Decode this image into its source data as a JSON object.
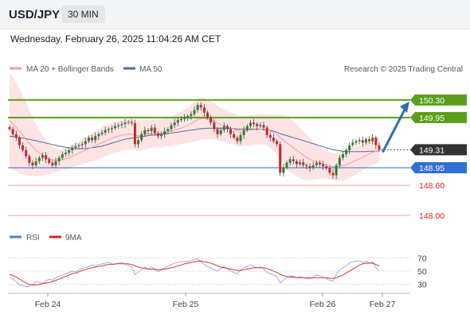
{
  "header": {
    "symbol": "USD/JPY",
    "timeframe": "30 MIN",
    "datetime": "Wednesday, February 26, 2025 11:04:26 AM CET"
  },
  "copyright": "Research © 2025 Trading Central",
  "colors": {
    "green": "#5a9e1a",
    "blue": "#2f6fd6",
    "red": "#e02020",
    "red_light": "#f4a0a0",
    "band_fill": "#fde3e3",
    "ma50": "#4a6fa5",
    "arrow": "#2f6db5",
    "candle_up": "#2e7d32",
    "candle_down": "#c62828"
  },
  "chart_data": [
    {
      "type": "candlestick",
      "title": "",
      "legend": [
        {
          "name": "MA 20 + Bollinger Bands",
          "color": "#f4a0a0"
        },
        {
          "name": "MA 50",
          "color": "#4a6fa5"
        }
      ],
      "x_ticks": [
        "Feb 24",
        "Feb 25",
        "Feb 26",
        "Feb 27"
      ],
      "levels": [
        {
          "value": 150.3,
          "label": "150.30",
          "color": "#5a9e1a",
          "style": "box"
        },
        {
          "value": 149.95,
          "label": "149.95",
          "color": "#5a9e1a",
          "style": "box"
        },
        {
          "value": 149.31,
          "label": "149.31",
          "color": "#333333",
          "style": "current"
        },
        {
          "value": 148.95,
          "label": "148.95",
          "color": "#2f6fd6",
          "style": "box"
        },
        {
          "value": 148.6,
          "label": "148.60",
          "color": "#e02020",
          "style": "text"
        },
        {
          "value": 148.0,
          "label": "148.00",
          "color": "#e02020",
          "style": "text"
        }
      ],
      "ylim": [
        147.7,
        150.55
      ],
      "closes": [
        149.72,
        149.62,
        149.55,
        149.4,
        149.3,
        149.18,
        149.05,
        149.0,
        149.08,
        149.15,
        149.2,
        149.12,
        149.05,
        149.0,
        149.08,
        149.15,
        149.22,
        149.25,
        149.3,
        149.35,
        149.38,
        149.4,
        149.42,
        149.48,
        149.55,
        149.5,
        149.58,
        149.62,
        149.65,
        149.7,
        149.72,
        149.74,
        149.78,
        149.8,
        149.82,
        149.85,
        149.86,
        149.84,
        149.42,
        149.5,
        149.62,
        149.7,
        149.68,
        149.75,
        149.64,
        149.58,
        149.62,
        149.68,
        149.72,
        149.8,
        149.85,
        149.9,
        149.92,
        149.95,
        149.98,
        150.02,
        150.1,
        150.2,
        150.15,
        150.05,
        149.95,
        149.85,
        149.72,
        149.62,
        149.7,
        149.78,
        149.72,
        149.62,
        149.55,
        149.48,
        149.6,
        149.7,
        149.78,
        149.85,
        149.82,
        149.78,
        149.8,
        149.75,
        149.6,
        149.55,
        149.48,
        149.42,
        148.85,
        148.95,
        149.05,
        149.12,
        149.08,
        149.02,
        149.06,
        149.0,
        148.98,
        148.95,
        149.0,
        149.05,
        149.02,
        148.98,
        148.94,
        148.85,
        148.8,
        149.0,
        149.15,
        149.22,
        149.3,
        149.4,
        149.45,
        149.48,
        149.5,
        149.45,
        149.52,
        149.48,
        149.55,
        149.4,
        149.31
      ],
      "ma20": [
        149.9,
        149.83,
        149.76,
        149.68,
        149.6,
        149.52,
        149.44,
        149.37,
        149.3,
        149.25,
        149.2,
        149.16,
        149.13,
        149.11,
        149.1,
        149.1,
        149.11,
        149.13,
        149.15,
        149.18,
        149.21,
        149.24,
        149.27,
        149.3,
        149.33,
        149.36,
        149.39,
        149.42,
        149.45,
        149.48,
        149.51,
        149.54,
        149.56,
        149.58,
        149.6,
        149.61,
        149.62,
        149.62,
        149.6,
        149.59,
        149.6,
        149.61,
        149.62,
        149.63,
        149.63,
        149.63,
        149.64,
        149.65,
        149.66,
        149.68,
        149.7,
        149.72,
        149.74,
        149.77,
        149.8,
        149.83,
        149.87,
        149.91,
        149.93,
        149.93,
        149.92,
        149.9,
        149.87,
        149.84,
        149.81,
        149.79,
        149.77,
        149.74,
        149.72,
        149.69,
        149.68,
        149.68,
        149.69,
        149.7,
        149.71,
        149.71,
        149.72,
        149.72,
        149.7,
        149.68,
        149.65,
        149.62,
        149.55,
        149.5,
        149.45,
        149.4,
        149.35,
        149.3,
        149.25,
        149.2,
        149.16,
        149.12,
        149.09,
        149.07,
        149.05,
        149.03,
        149.01,
        148.99,
        148.97,
        148.97,
        148.98,
        148.99,
        149.01,
        149.04,
        149.07,
        149.1,
        149.13,
        149.16,
        149.2,
        149.23,
        149.26,
        149.28,
        149.3
      ],
      "ma50": [
        149.58,
        149.57,
        149.56,
        149.55,
        149.54,
        149.53,
        149.52,
        149.5,
        149.49,
        149.47,
        149.46,
        149.44,
        149.43,
        149.41,
        149.4,
        149.38,
        149.37,
        149.36,
        149.35,
        149.34,
        149.33,
        149.33,
        149.33,
        149.33,
        149.34,
        149.35,
        149.36,
        149.37,
        149.38,
        149.4,
        149.42,
        149.44,
        149.46,
        149.48,
        149.5,
        149.52,
        149.53,
        149.54,
        149.55,
        149.56,
        149.57,
        149.58,
        149.59,
        149.6,
        149.6,
        149.61,
        149.62,
        149.62,
        149.63,
        149.64,
        149.65,
        149.66,
        149.67,
        149.68,
        149.69,
        149.7,
        149.71,
        149.72,
        149.73,
        149.73,
        149.74,
        149.74,
        149.74,
        149.74,
        149.74,
        149.74,
        149.74,
        149.73,
        149.73,
        149.72,
        149.72,
        149.72,
        149.72,
        149.72,
        149.72,
        149.72,
        149.72,
        149.71,
        149.7,
        149.69,
        149.68,
        149.66,
        149.63,
        149.61,
        149.59,
        149.57,
        149.55,
        149.53,
        149.51,
        149.49,
        149.47,
        149.45,
        149.43,
        149.41,
        149.39,
        149.37,
        149.35,
        149.33,
        149.31,
        149.3,
        149.29,
        149.28,
        149.27,
        149.27,
        149.27,
        149.27,
        149.27,
        149.27,
        149.27,
        149.28,
        149.28,
        149.28,
        149.29
      ],
      "band_width": [
        0.95,
        0.92,
        0.88,
        0.84,
        0.78,
        0.72,
        0.65,
        0.58,
        0.52,
        0.46,
        0.4,
        0.35,
        0.3,
        0.26,
        0.24,
        0.22,
        0.21,
        0.21,
        0.22,
        0.22,
        0.23,
        0.24,
        0.25,
        0.26,
        0.27,
        0.28,
        0.29,
        0.3,
        0.3,
        0.31,
        0.31,
        0.31,
        0.31,
        0.31,
        0.31,
        0.31,
        0.3,
        0.3,
        0.3,
        0.3,
        0.3,
        0.3,
        0.29,
        0.28,
        0.28,
        0.28,
        0.28,
        0.28,
        0.28,
        0.29,
        0.3,
        0.31,
        0.32,
        0.33,
        0.35,
        0.37,
        0.4,
        0.42,
        0.42,
        0.41,
        0.4,
        0.38,
        0.36,
        0.34,
        0.33,
        0.32,
        0.32,
        0.31,
        0.31,
        0.31,
        0.3,
        0.3,
        0.3,
        0.3,
        0.3,
        0.3,
        0.3,
        0.3,
        0.31,
        0.33,
        0.36,
        0.4,
        0.46,
        0.5,
        0.52,
        0.53,
        0.53,
        0.52,
        0.5,
        0.48,
        0.45,
        0.42,
        0.38,
        0.35,
        0.32,
        0.3,
        0.28,
        0.27,
        0.27,
        0.27,
        0.28,
        0.29,
        0.29,
        0.29,
        0.29,
        0.28,
        0.27,
        0.26,
        0.25,
        0.25,
        0.25,
        0.25,
        0.25
      ],
      "projection": {
        "from": 149.31,
        "to": 150.3
      }
    },
    {
      "type": "line",
      "title": "",
      "legend": [
        {
          "name": "RSI",
          "color": "#5b7fd6"
        },
        {
          "name": "9MA",
          "color": "#e02020"
        }
      ],
      "y_ticks": [
        "70",
        "50",
        "30"
      ],
      "ylim": [
        20,
        80
      ],
      "rsi": [
        40,
        38,
        34,
        30,
        28,
        26,
        27,
        30,
        34,
        33,
        31,
        35,
        38,
        36,
        40,
        42,
        44,
        46,
        48,
        50,
        49,
        52,
        54,
        55,
        57,
        59,
        58,
        60,
        61,
        62,
        63,
        61,
        60,
        62,
        63,
        60,
        59,
        57,
        45,
        48,
        52,
        56,
        53,
        57,
        52,
        49,
        52,
        55,
        57,
        60,
        62,
        63,
        64,
        64,
        65,
        66,
        67,
        69,
        64,
        60,
        57,
        55,
        52,
        50,
        54,
        57,
        54,
        50,
        48,
        46,
        52,
        55,
        57,
        59,
        57,
        55,
        56,
        53,
        48,
        46,
        44,
        42,
        32,
        36,
        40,
        43,
        42,
        40,
        42,
        40,
        39,
        38,
        41,
        44,
        43,
        41,
        39,
        36,
        35,
        45,
        52,
        55,
        58,
        62,
        64,
        65,
        66,
        63,
        65,
        62,
        64,
        55,
        50
      ],
      "ma9": [
        45,
        43,
        41,
        38,
        35,
        32,
        30,
        29,
        29,
        30,
        31,
        32,
        33,
        34,
        36,
        38,
        40,
        42,
        44,
        46,
        47,
        49,
        51,
        52,
        54,
        55,
        56,
        57,
        58,
        59,
        60,
        60,
        61,
        61,
        61,
        61,
        61,
        60,
        58,
        56,
        55,
        54,
        53,
        53,
        53,
        52,
        52,
        53,
        54,
        55,
        56,
        58,
        59,
        61,
        62,
        63,
        64,
        65,
        65,
        64,
        63,
        62,
        60,
        58,
        56,
        55,
        54,
        53,
        52,
        51,
        51,
        52,
        53,
        54,
        55,
        55,
        55,
        55,
        54,
        52,
        50,
        48,
        45,
        43,
        42,
        41,
        41,
        40,
        40,
        40,
        40,
        40,
        40,
        40,
        40,
        40,
        40,
        39,
        39,
        40,
        42,
        44,
        47,
        50,
        53,
        56,
        59,
        61,
        62,
        62,
        62,
        60,
        58
      ]
    }
  ]
}
